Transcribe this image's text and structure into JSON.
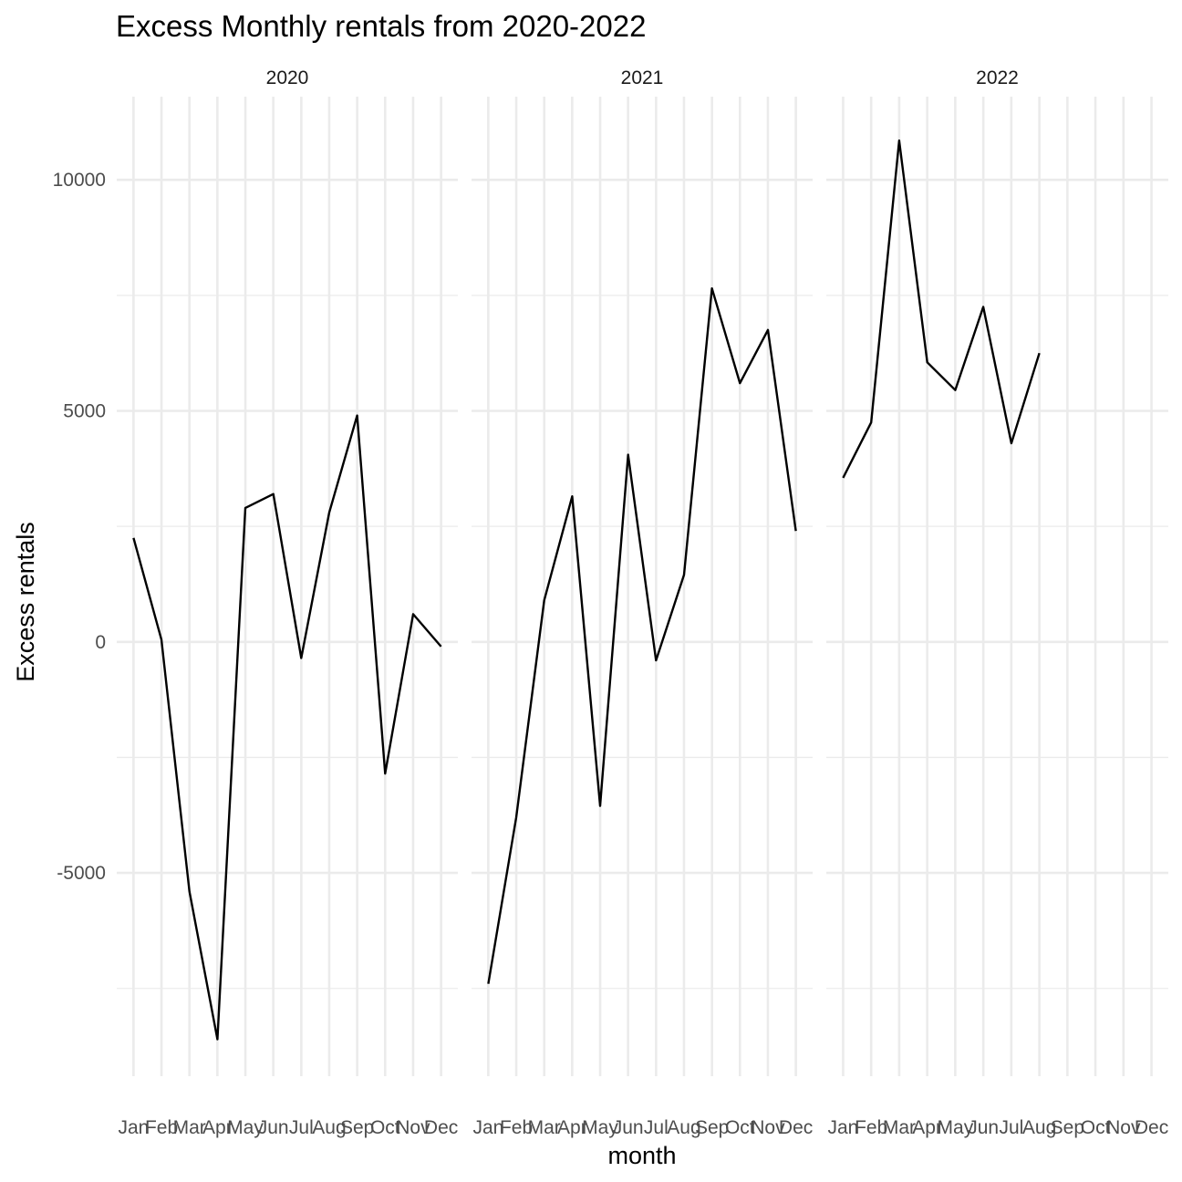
{
  "chart_data": {
    "type": "line",
    "title": "Excess Monthly rentals from 2020-2022",
    "xlabel": "month",
    "ylabel": "Excess rentals",
    "categories": [
      "Jan",
      "Feb",
      "Mar",
      "Apr",
      "May",
      "Jun",
      "Jul",
      "Aug",
      "Sep",
      "Oct",
      "Nov",
      "Dec"
    ],
    "y_ticks": [
      -5000,
      0,
      5000,
      10000
    ],
    "y_tick_labels": [
      "-5000",
      "0",
      "5000",
      "10000"
    ],
    "y_minor_ticks": [
      -7500,
      -2500,
      2500,
      7500
    ],
    "ylim": [
      -9400,
      11800
    ],
    "grid": true,
    "facets": [
      {
        "label": "2020",
        "values": [
          2250,
          50,
          -5400,
          -8600,
          2900,
          3200,
          -350,
          2800,
          4900,
          -2850,
          600,
          -100
        ]
      },
      {
        "label": "2021",
        "values": [
          -7400,
          -3800,
          900,
          3150,
          -3550,
          4050,
          -400,
          1450,
          7650,
          5600,
          6750,
          2400
        ]
      },
      {
        "label": "2022",
        "values": [
          3550,
          4750,
          10850,
          6050,
          5450,
          7250,
          4300,
          6250,
          null,
          null,
          null,
          null
        ]
      }
    ]
  }
}
